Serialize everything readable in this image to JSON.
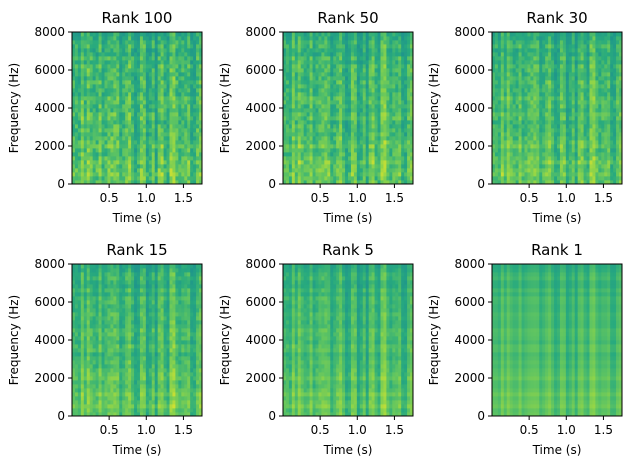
{
  "chart_data": [
    {
      "type": "heatmap",
      "title": "Rank 100",
      "xlabel": "Time (s)",
      "ylabel": "Frequency (Hz)",
      "xlim": [
        0,
        1.75
      ],
      "ylim": [
        0,
        8000
      ],
      "xticks": [
        "0.5",
        "1.0",
        "1.5"
      ],
      "yticks": [
        "0",
        "2000",
        "4000",
        "6000",
        "8000"
      ],
      "colormap": "viridis",
      "rank": 100
    },
    {
      "type": "heatmap",
      "title": "Rank 50",
      "xlabel": "Time (s)",
      "ylabel": "Frequency (Hz)",
      "xlim": [
        0,
        1.75
      ],
      "ylim": [
        0,
        8000
      ],
      "xticks": [
        "0.5",
        "1.0",
        "1.5"
      ],
      "yticks": [
        "0",
        "2000",
        "4000",
        "6000",
        "8000"
      ],
      "colormap": "viridis",
      "rank": 50
    },
    {
      "type": "heatmap",
      "title": "Rank 30",
      "xlabel": "Time (s)",
      "ylabel": "Frequency (Hz)",
      "xlim": [
        0,
        1.75
      ],
      "ylim": [
        0,
        8000
      ],
      "xticks": [
        "0.5",
        "1.0",
        "1.5"
      ],
      "yticks": [
        "0",
        "2000",
        "4000",
        "6000",
        "8000"
      ],
      "colormap": "viridis",
      "rank": 30
    },
    {
      "type": "heatmap",
      "title": "Rank 15",
      "xlabel": "Time (s)",
      "ylabel": "Frequency (Hz)",
      "xlim": [
        0,
        1.75
      ],
      "ylim": [
        0,
        8000
      ],
      "xticks": [
        "0.5",
        "1.0",
        "1.5"
      ],
      "yticks": [
        "0",
        "2000",
        "4000",
        "6000",
        "8000"
      ],
      "colormap": "viridis",
      "rank": 15
    },
    {
      "type": "heatmap",
      "title": "Rank 5",
      "xlabel": "Time (s)",
      "ylabel": "Frequency (Hz)",
      "xlim": [
        0,
        1.75
      ],
      "ylim": [
        0,
        8000
      ],
      "xticks": [
        "0.5",
        "1.0",
        "1.5"
      ],
      "yticks": [
        "0",
        "2000",
        "4000",
        "6000",
        "8000"
      ],
      "colormap": "viridis",
      "rank": 5
    },
    {
      "type": "heatmap",
      "title": "Rank 1",
      "xlabel": "Time (s)",
      "ylabel": "Frequency (Hz)",
      "xlim": [
        0,
        1.75
      ],
      "ylim": [
        0,
        8000
      ],
      "xticks": [
        "0.5",
        "1.0",
        "1.5"
      ],
      "yticks": [
        "0",
        "2000",
        "4000",
        "6000",
        "8000"
      ],
      "colormap": "viridis",
      "rank": 1
    }
  ]
}
